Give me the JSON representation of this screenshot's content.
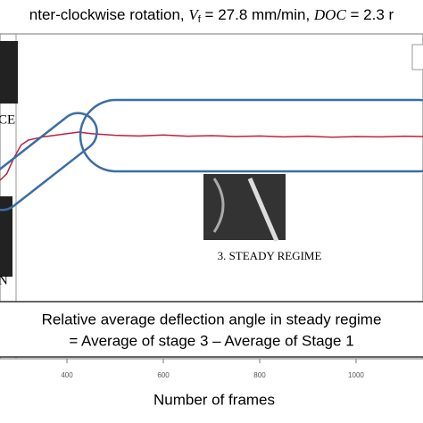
{
  "chart_data": {
    "type": "line",
    "title_parts": [
      "nter-clockwise rotation, ",
      "V",
      "f",
      " = 27.8 mm/min, ",
      "DOC",
      " = 2.3 r"
    ],
    "annotations": {
      "left_top": "CE",
      "left_bottom": "N",
      "stage": "3. STEADY REGIME",
      "box_line1": "Relative average deflection angle in steady regime",
      "box_line2": "= Average of stage 3 – Average of Stage 1"
    },
    "x": [
      261,
      275,
      290,
      305,
      320,
      335,
      350,
      375,
      400,
      425,
      450,
      500,
      550,
      600,
      650,
      700,
      750,
      800,
      850,
      900,
      950,
      1000,
      1050,
      1100,
      1139
    ],
    "series": [
      {
        "color": "#c0213a",
        "values": [
          55,
          57,
          62,
          66,
          67.5,
          68,
          68.5,
          69,
          69.5,
          70,
          69.5,
          69,
          68.8,
          69.1,
          68.7,
          68.9,
          68.6,
          68.8,
          68.5,
          68.7,
          68.4,
          68.6,
          68.5,
          68.7,
          68.6
        ]
      }
    ],
    "xlim": [
      261,
      1139
    ],
    "xticks": [
      400,
      600,
      800,
      1000
    ],
    "ylim": [
      0,
      100
    ],
    "xlabel": "Number of frames"
  }
}
